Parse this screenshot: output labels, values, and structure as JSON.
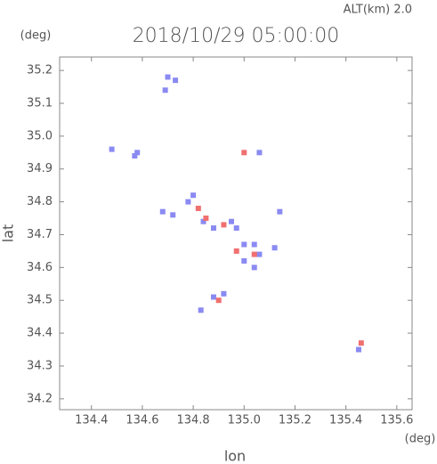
{
  "chart_data": {
    "type": "scatter",
    "title": "2018/10/29 05:00:00",
    "subtitle": "ALT(km) 2.0",
    "x_label": "lon",
    "y_label": "lat",
    "x_unit": "(deg)",
    "y_unit": "(deg)",
    "xlim": [
      134.275,
      135.66
    ],
    "ylim": [
      34.167,
      35.241
    ],
    "xticks": [
      134.4,
      134.6,
      134.8,
      {
        "value": 135.0,
        "label": "135.0"
      },
      135.2,
      135.4,
      135.6
    ],
    "yticks": [
      34.2,
      34.3,
      34.4,
      34.5,
      34.6,
      34.7,
      34.8,
      34.9,
      {
        "value": 35.0,
        "label": "35.0"
      },
      35.1,
      35.2
    ],
    "series": [
      {
        "name": "blue",
        "color": "#8a8af2",
        "x": [
          134.7,
          134.73,
          134.69,
          134.58,
          134.57,
          134.48,
          135.06,
          134.68,
          134.72,
          134.8,
          134.78,
          134.84,
          134.88,
          134.95,
          134.97,
          135.0,
          135.04,
          135.06,
          135.0,
          135.04,
          134.92,
          134.88,
          134.83,
          135.14,
          135.12,
          135.45
        ],
        "y": [
          35.18,
          35.17,
          35.14,
          34.95,
          34.94,
          34.96,
          34.95,
          34.77,
          34.76,
          34.82,
          34.8,
          34.74,
          34.72,
          34.74,
          34.72,
          34.67,
          34.67,
          34.64,
          34.62,
          34.6,
          34.52,
          34.51,
          34.47,
          34.77,
          34.66,
          34.35
        ]
      },
      {
        "name": "red",
        "color": "#f07070",
        "x": [
          134.82,
          134.85,
          134.92,
          135.04,
          134.9,
          135.46,
          135.0,
          134.97
        ],
        "y": [
          34.78,
          34.75,
          34.73,
          34.64,
          34.5,
          34.37,
          34.95,
          34.65
        ]
      }
    ]
  }
}
